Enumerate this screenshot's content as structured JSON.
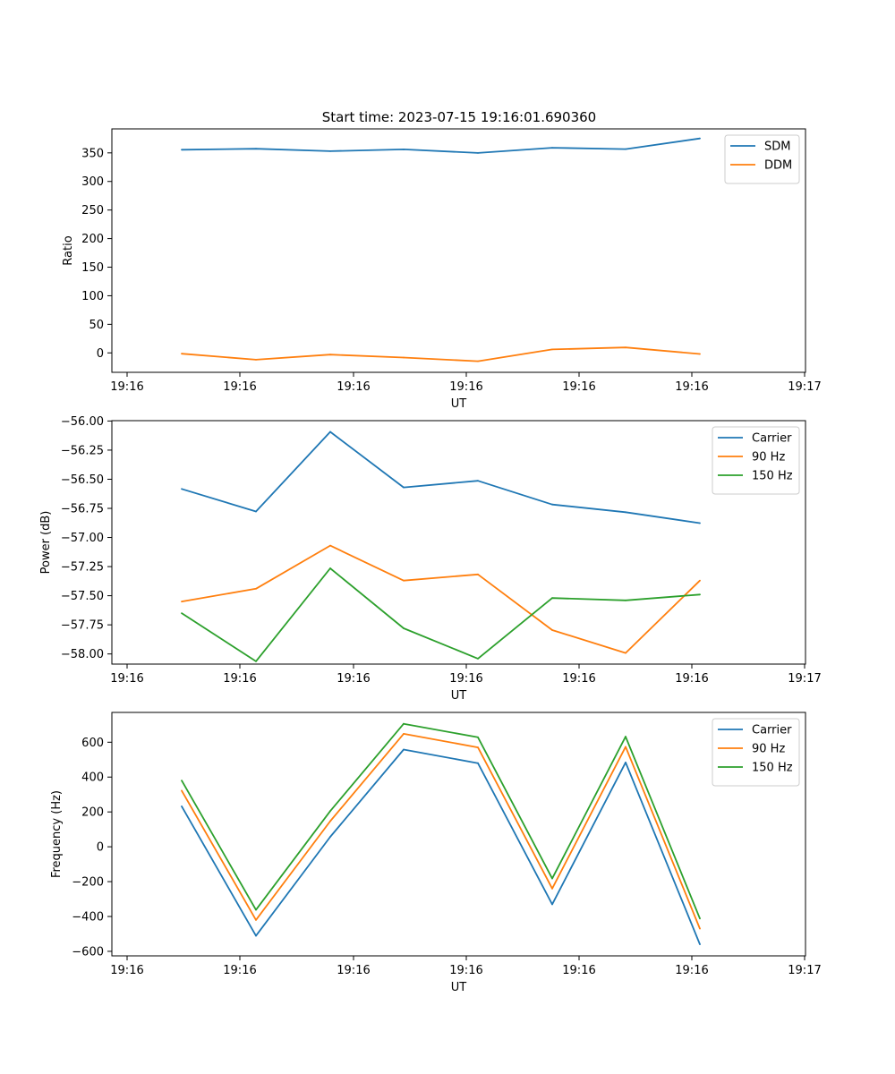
{
  "figure": {
    "title": "Start time: 2023-07-15 19:16:01.690360"
  },
  "chart_data": [
    {
      "type": "line",
      "xlabel": "UT",
      "ylabel": "Ratio",
      "xtick_labels": [
        "19:16",
        "19:16",
        "19:16",
        "19:16",
        "19:16",
        "19:16",
        "19:16"
      ],
      "xtick_label_last": "19:17",
      "ylim": [
        -34,
        392
      ],
      "yticks": [
        0,
        50,
        100,
        150,
        200,
        250,
        300,
        350
      ],
      "ytick_labels": [
        "0",
        "50",
        "100",
        "150",
        "200",
        "250",
        "300",
        "350"
      ],
      "legend_position": "top-right",
      "series": [
        {
          "name": "SDM",
          "color": "#1f77b4",
          "values": [
            355.5,
            357.3,
            353.0,
            356.1,
            349.9,
            358.9,
            356.6,
            375.3
          ]
        },
        {
          "name": "DDM",
          "color": "#ff7f0e",
          "values": [
            -1.4,
            -11.9,
            -3.0,
            -8.2,
            -14.6,
            6.1,
            9.5,
            -1.9
          ]
        }
      ]
    },
    {
      "type": "line",
      "xlabel": "UT",
      "ylabel": "Power (dB)",
      "xtick_labels": [
        "19:16",
        "19:16",
        "19:16",
        "19:16",
        "19:16",
        "19:16",
        "19:16"
      ],
      "xtick_label_last": "19:17",
      "ylim": [
        -58.087,
        -55.997
      ],
      "yticks": [
        -56.0,
        -56.25,
        -56.5,
        -56.75,
        -57.0,
        -57.25,
        -57.5,
        -57.75,
        -58.0
      ],
      "ytick_labels": [
        "−56.00",
        "−56.25",
        "−56.50",
        "−56.75",
        "−57.00",
        "−57.25",
        "−57.50",
        "−57.75",
        "−58.00"
      ],
      "legend_position": "top-right",
      "series": [
        {
          "name": "Carrier",
          "color": "#1f77b4",
          "values": [
            -56.583,
            -56.777,
            -56.093,
            -56.57,
            -56.513,
            -56.717,
            -56.783,
            -56.877
          ]
        },
        {
          "name": "90 Hz",
          "color": "#ff7f0e",
          "values": [
            -57.55,
            -57.44,
            -57.07,
            -57.37,
            -57.317,
            -57.795,
            -57.992,
            -57.37
          ]
        },
        {
          "name": "150 Hz",
          "color": "#2ca02c",
          "values": [
            -57.65,
            -58.063,
            -57.265,
            -57.78,
            -58.04,
            -57.52,
            -57.54,
            -57.49
          ]
        }
      ]
    },
    {
      "type": "line",
      "xlabel": "UT",
      "ylabel": "Frequency (Hz)",
      "xtick_labels": [
        "19:16",
        "19:16",
        "19:16",
        "19:16",
        "19:16",
        "19:16",
        "19:16"
      ],
      "xtick_label_last": "19:17",
      "ylim": [
        -626,
        771
      ],
      "yticks": [
        -600,
        -400,
        -200,
        0,
        200,
        400,
        600
      ],
      "ytick_labels": [
        "−600",
        "−400",
        "−200",
        "0",
        "200",
        "400",
        "600"
      ],
      "legend_position": "top-right",
      "series": [
        {
          "name": "Carrier",
          "color": "#1f77b4",
          "values": [
            232,
            -511,
            57,
            558,
            480,
            -330,
            484,
            -560
          ]
        },
        {
          "name": "90 Hz",
          "color": "#ff7f0e",
          "values": [
            322,
            -420,
            147,
            648,
            570,
            -240,
            574,
            -470
          ]
        },
        {
          "name": "150 Hz",
          "color": "#2ca02c",
          "values": [
            380,
            -362,
            205,
            706,
            628,
            -182,
            632,
            -412
          ]
        }
      ]
    }
  ]
}
